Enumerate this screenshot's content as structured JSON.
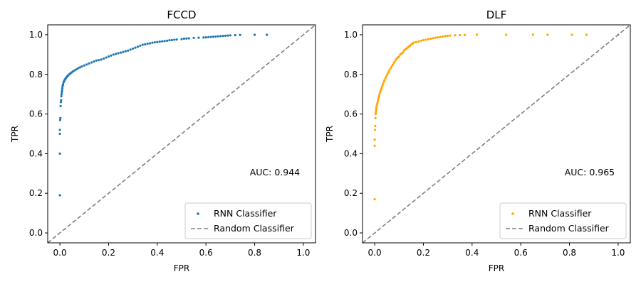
{
  "chart_data": [
    {
      "type": "scatter",
      "title": "FCCD",
      "xlabel": "FPR",
      "ylabel": "TPR",
      "xlim": [
        -0.05,
        1.05
      ],
      "ylim": [
        -0.05,
        1.05
      ],
      "xticks": [
        "0.0",
        "0.2",
        "0.4",
        "0.6",
        "0.8",
        "1.0"
      ],
      "yticks": [
        "0.0",
        "0.2",
        "0.4",
        "0.6",
        "0.8",
        "1.0"
      ],
      "annotation": "AUC: 0.944",
      "legend": {
        "position": "lower right",
        "entries": [
          "RNN Classifier",
          "Random Classifier"
        ]
      },
      "series": [
        {
          "name": "RNN Classifier",
          "kind": "scatter",
          "color": "#1f77b4",
          "x": [
            0.0,
            0.0,
            0.0,
            0.0,
            0.001,
            0.002,
            0.003,
            0.004,
            0.005,
            0.006,
            0.007,
            0.008,
            0.009,
            0.01,
            0.011,
            0.012,
            0.013,
            0.015,
            0.017,
            0.019,
            0.021,
            0.024,
            0.027,
            0.03,
            0.034,
            0.038,
            0.043,
            0.048,
            0.054,
            0.06,
            0.067,
            0.074,
            0.082,
            0.09,
            0.1,
            0.11,
            0.12,
            0.13,
            0.14,
            0.15,
            0.16,
            0.17,
            0.18,
            0.19,
            0.2,
            0.21,
            0.22,
            0.23,
            0.24,
            0.25,
            0.26,
            0.27,
            0.28,
            0.29,
            0.3,
            0.31,
            0.32,
            0.33,
            0.34,
            0.35,
            0.36,
            0.37,
            0.38,
            0.39,
            0.4,
            0.41,
            0.42,
            0.43,
            0.44,
            0.45,
            0.46,
            0.47,
            0.48,
            0.5,
            0.51,
            0.52,
            0.53,
            0.55,
            0.57,
            0.59,
            0.6,
            0.61,
            0.62,
            0.63,
            0.64,
            0.65,
            0.66,
            0.67,
            0.68,
            0.69,
            0.7,
            0.72,
            0.74,
            0.8,
            0.85
          ],
          "y": [
            0.19,
            0.4,
            0.5,
            0.52,
            0.57,
            0.58,
            0.64,
            0.66,
            0.67,
            0.69,
            0.7,
            0.71,
            0.72,
            0.73,
            0.74,
            0.745,
            0.75,
            0.76,
            0.765,
            0.77,
            0.775,
            0.78,
            0.785,
            0.79,
            0.795,
            0.8,
            0.805,
            0.81,
            0.815,
            0.82,
            0.825,
            0.83,
            0.835,
            0.84,
            0.845,
            0.85,
            0.855,
            0.86,
            0.865,
            0.87,
            0.872,
            0.875,
            0.88,
            0.885,
            0.89,
            0.895,
            0.9,
            0.903,
            0.907,
            0.91,
            0.913,
            0.917,
            0.92,
            0.925,
            0.93,
            0.935,
            0.94,
            0.945,
            0.95,
            0.952,
            0.955,
            0.957,
            0.96,
            0.962,
            0.963,
            0.965,
            0.967,
            0.968,
            0.97,
            0.972,
            0.973,
            0.975,
            0.976,
            0.978,
            0.98,
            0.981,
            0.982,
            0.984,
            0.985,
            0.986,
            0.987,
            0.988,
            0.989,
            0.99,
            0.991,
            0.992,
            0.993,
            0.994,
            0.995,
            0.996,
            0.997,
            0.998,
            0.999,
            1.0,
            1.0
          ]
        },
        {
          "name": "Random Classifier",
          "kind": "line",
          "style": "dashed",
          "color": "#808080",
          "x": [
            -0.05,
            1.05
          ],
          "y": [
            -0.05,
            1.05
          ]
        }
      ]
    },
    {
      "type": "scatter",
      "title": "DLF",
      "xlabel": "FPR",
      "ylabel": "TPR",
      "xlim": [
        -0.05,
        1.05
      ],
      "ylim": [
        -0.05,
        1.05
      ],
      "xticks": [
        "0.0",
        "0.2",
        "0.4",
        "0.6",
        "0.8",
        "1.0"
      ],
      "yticks": [
        "0.0",
        "0.2",
        "0.4",
        "0.6",
        "0.8",
        "1.0"
      ],
      "annotation": "AUC: 0.965",
      "legend": {
        "position": "lower right",
        "entries": [
          "RNN Classifier",
          "Random Classifier"
        ]
      },
      "series": [
        {
          "name": "RNN Classifier",
          "kind": "scatter",
          "color": "#ffa500",
          "x": [
            0.0,
            0.0,
            0.0,
            0.001,
            0.002,
            0.003,
            0.004,
            0.005,
            0.006,
            0.007,
            0.008,
            0.01,
            0.012,
            0.014,
            0.016,
            0.018,
            0.02,
            0.022,
            0.025,
            0.028,
            0.031,
            0.034,
            0.037,
            0.04,
            0.044,
            0.048,
            0.052,
            0.056,
            0.06,
            0.065,
            0.07,
            0.075,
            0.08,
            0.085,
            0.09,
            0.095,
            0.1,
            0.105,
            0.11,
            0.115,
            0.12,
            0.125,
            0.13,
            0.135,
            0.14,
            0.145,
            0.15,
            0.155,
            0.16,
            0.17,
            0.18,
            0.19,
            0.2,
            0.21,
            0.22,
            0.23,
            0.24,
            0.25,
            0.26,
            0.27,
            0.28,
            0.29,
            0.3,
            0.31,
            0.33,
            0.35,
            0.37,
            0.42,
            0.54,
            0.65,
            0.71,
            0.81,
            0.87,
            1.0
          ],
          "y": [
            0.17,
            0.44,
            0.47,
            0.52,
            0.54,
            0.58,
            0.6,
            0.61,
            0.62,
            0.63,
            0.64,
            0.65,
            0.66,
            0.67,
            0.68,
            0.69,
            0.7,
            0.71,
            0.72,
            0.73,
            0.74,
            0.75,
            0.76,
            0.77,
            0.78,
            0.79,
            0.8,
            0.81,
            0.82,
            0.83,
            0.84,
            0.85,
            0.86,
            0.87,
            0.88,
            0.885,
            0.89,
            0.9,
            0.905,
            0.91,
            0.92,
            0.925,
            0.93,
            0.935,
            0.94,
            0.945,
            0.95,
            0.955,
            0.96,
            0.963,
            0.966,
            0.97,
            0.973,
            0.975,
            0.978,
            0.98,
            0.983,
            0.985,
            0.987,
            0.989,
            0.991,
            0.993,
            0.995,
            0.996,
            0.997,
            0.998,
            0.999,
            1.0,
            1.0,
            1.0,
            1.0,
            1.0,
            1.0,
            1.0
          ]
        },
        {
          "name": "Random Classifier",
          "kind": "line",
          "style": "dashed",
          "color": "#808080",
          "x": [
            -0.05,
            1.05
          ],
          "y": [
            -0.05,
            1.05
          ]
        }
      ]
    }
  ]
}
